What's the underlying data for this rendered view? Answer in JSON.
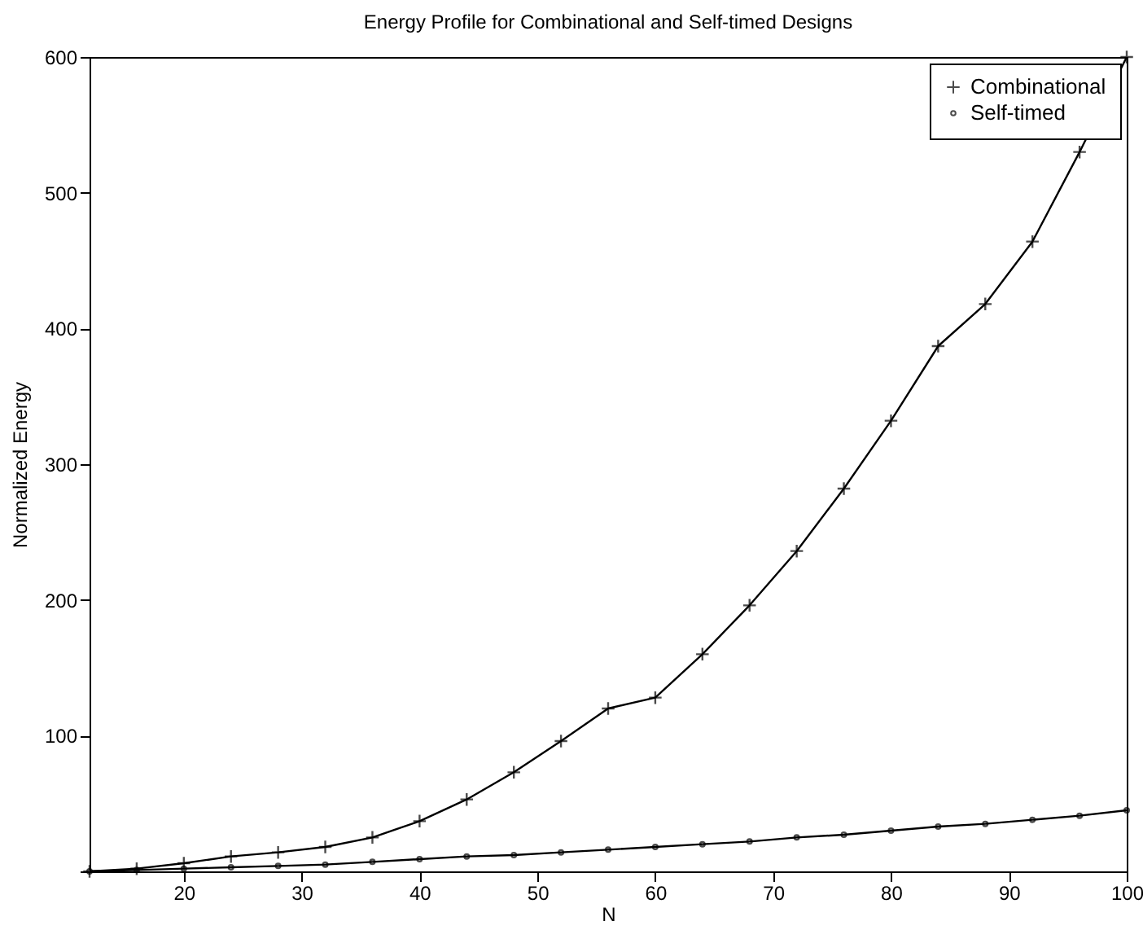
{
  "chart_data": {
    "type": "line",
    "title": "Energy Profile for Combinational and Self-timed Designs",
    "xlabel": "N",
    "ylabel": "Normalized Energy",
    "x": [
      12,
      16,
      20,
      24,
      28,
      32,
      36,
      40,
      44,
      48,
      52,
      56,
      60,
      64,
      68,
      72,
      76,
      80,
      84,
      88,
      92,
      96,
      100
    ],
    "series": [
      {
        "name": "Combinational",
        "color": "#000000",
        "marker": "cross",
        "values": [
          0,
          2,
          6,
          11,
          14,
          18,
          25,
          37,
          53,
          73,
          96,
          120,
          128,
          160,
          196,
          236,
          282,
          332,
          387,
          418,
          464,
          530,
          600
        ]
      },
      {
        "name": "Self-timed",
        "color": "#000000",
        "marker": "circle",
        "values": [
          0,
          1,
          2,
          3,
          4,
          5,
          7,
          9,
          11,
          12,
          14,
          16,
          18,
          20,
          22,
          25,
          27,
          30,
          33,
          35,
          38,
          41,
          45
        ]
      }
    ],
    "xlim": [
      12,
      100
    ],
    "xticks": [
      20,
      30,
      40,
      50,
      60,
      70,
      80,
      90,
      100
    ],
    "ylim": [
      0,
      600
    ],
    "yticks": [
      {
        "value": 0,
        "label": null
      },
      100,
      200,
      300,
      400,
      500,
      600
    ],
    "grid": false,
    "legend": "top right",
    "line_style": "solid"
  }
}
